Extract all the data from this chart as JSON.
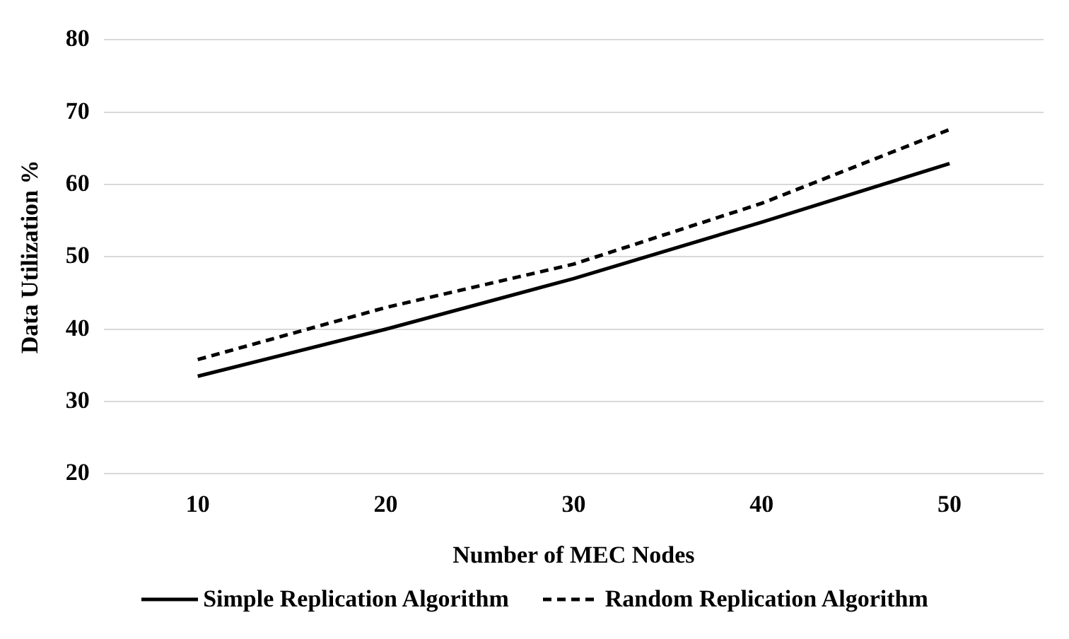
{
  "chart_data": {
    "type": "line",
    "xlabel": "Number of MEC Nodes",
    "ylabel": "Data Utilization %",
    "categories": [
      "10",
      "20",
      "30",
      "40",
      "50"
    ],
    "series": [
      {
        "name": "Simple Replication Algorithm",
        "color": "#000000",
        "values": [
          33.5,
          40,
          47,
          54.8,
          62.9
        ],
        "line_style": "solid"
      },
      {
        "name": "Random Replication Algorithm",
        "color": "#000000",
        "values": [
          35.8,
          43,
          49,
          57.4,
          67.6
        ],
        "line_style": "dashed"
      }
    ],
    "ylim": [
      20,
      80
    ],
    "yticks": [
      20,
      30,
      40,
      50,
      60,
      70,
      80
    ],
    "grid": "y",
    "legend": "bottom",
    "marker": "none"
  }
}
